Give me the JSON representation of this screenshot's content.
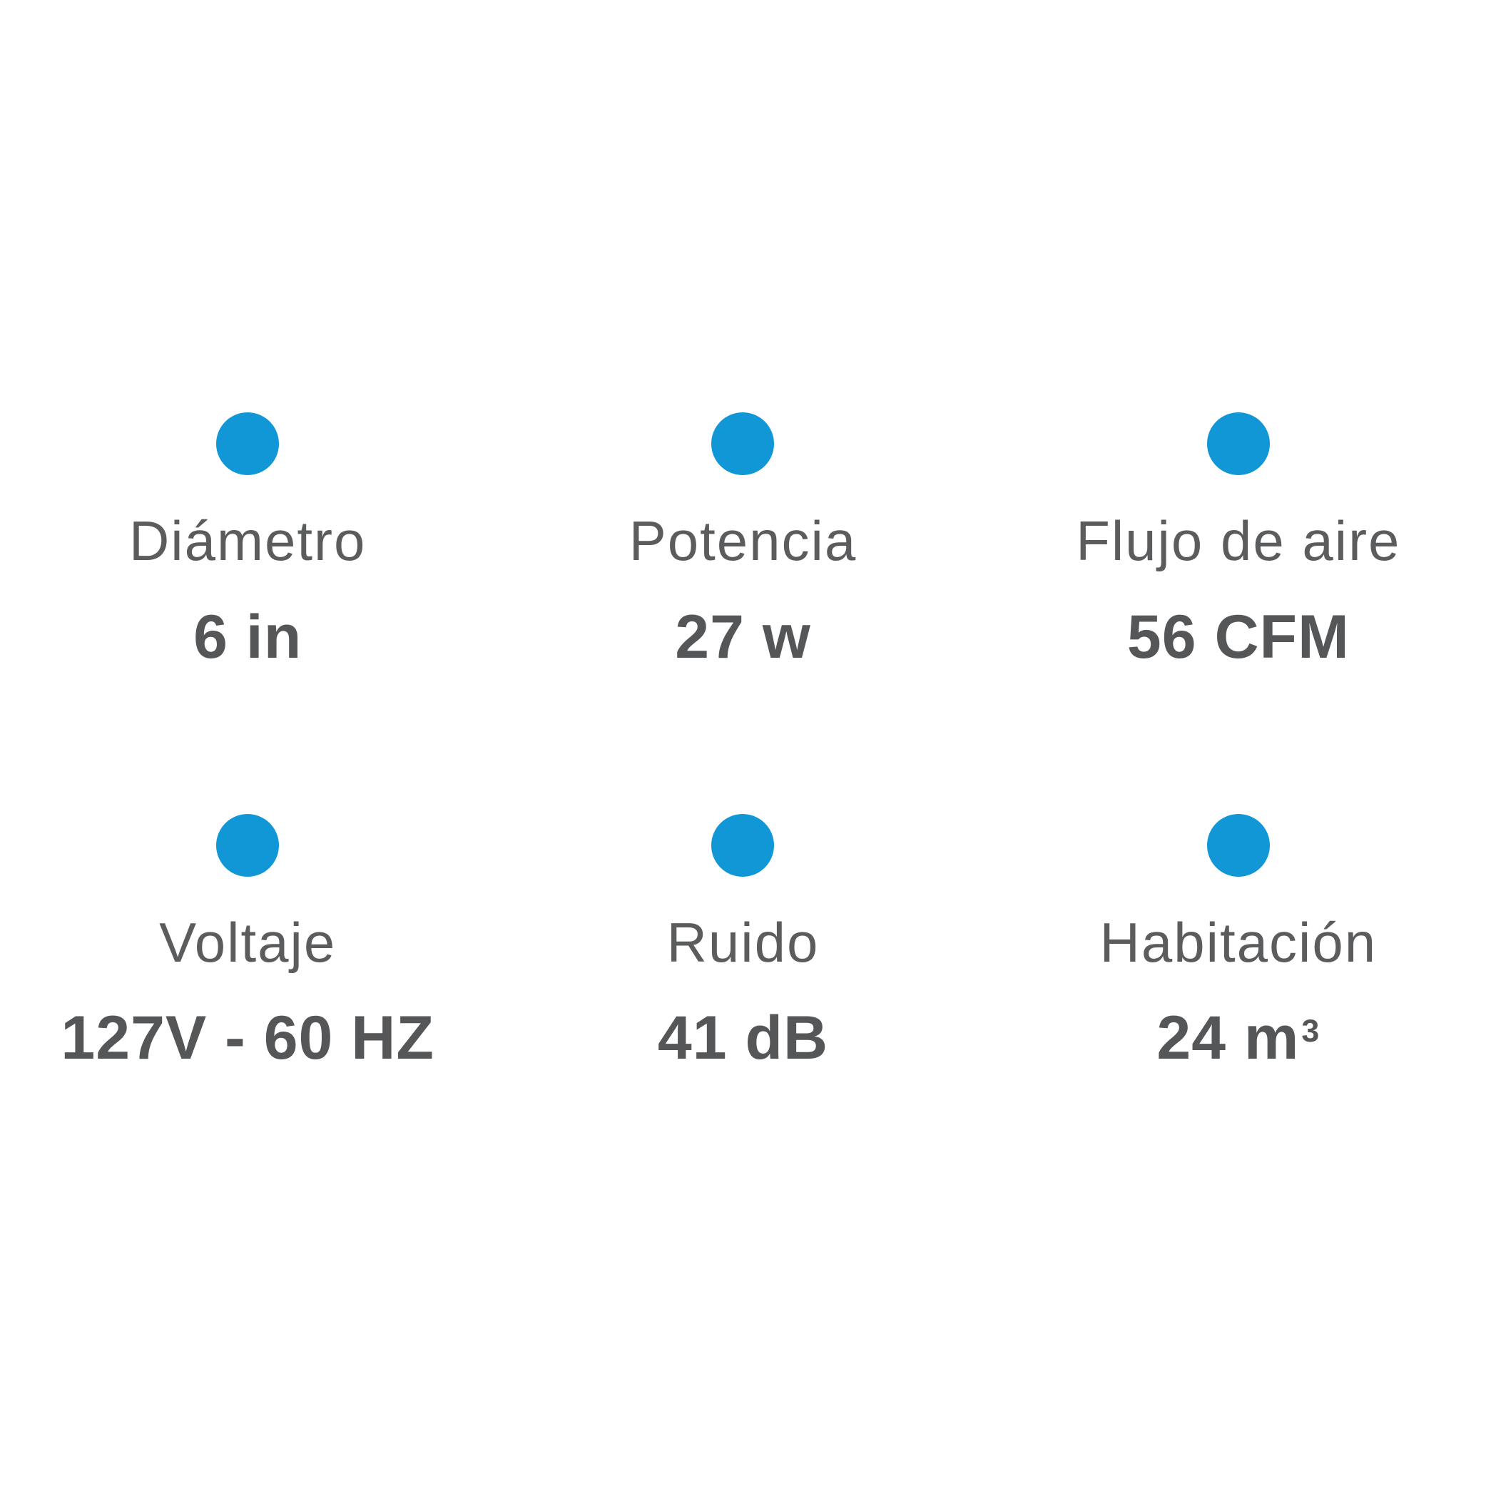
{
  "theme": {
    "accent": "#1297d6",
    "label_color": "#5b5c5e",
    "value_color": "#555658",
    "background": "#ffffff"
  },
  "specs": [
    {
      "id": "diametro",
      "label": "Diámetro",
      "value": "6 in"
    },
    {
      "id": "potencia",
      "label": "Potencia",
      "value": "27 w"
    },
    {
      "id": "flujo-de-aire",
      "label": "Flujo de aire",
      "value": "56 CFM"
    },
    {
      "id": "voltaje",
      "label": "Voltaje",
      "value": "127V - 60 HZ"
    },
    {
      "id": "ruido",
      "label": "Ruido",
      "value": "41 dB"
    },
    {
      "id": "habitacion",
      "label": "Habitación",
      "value": "24 m",
      "value_sup": "3"
    }
  ]
}
